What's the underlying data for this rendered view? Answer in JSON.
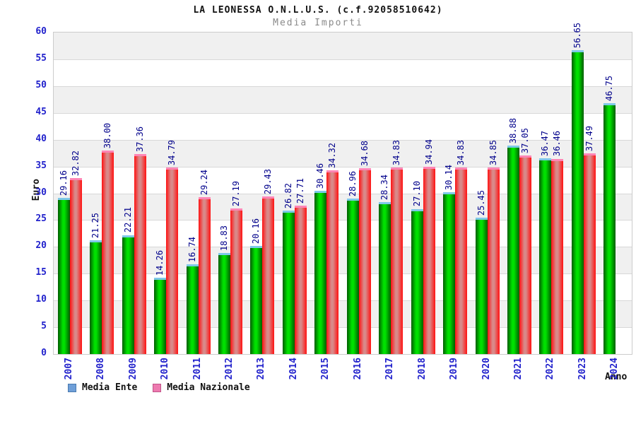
{
  "header": {
    "title": "LA LEONESSA O.N.L.U.S. (c.f.92058510642)",
    "subtitle": "Media Importi"
  },
  "chart_data": {
    "type": "bar",
    "title": "LA LEONESSA O.N.L.U.S. (c.f.92058510642)",
    "subtitle": "Media Importi",
    "xlabel": "Anno",
    "ylabel": "Euro",
    "ylim": [
      0,
      60
    ],
    "yticks": [
      0,
      5,
      10,
      15,
      20,
      25,
      30,
      35,
      40,
      45,
      50,
      55,
      60
    ],
    "grid": true,
    "legend_position": "bottom-left",
    "value_label_decimals": 2,
    "categories": [
      "2007",
      "2008",
      "2009",
      "2010",
      "2011",
      "2012",
      "2013",
      "2014",
      "2015",
      "2016",
      "2017",
      "2018",
      "2019",
      "2020",
      "2021",
      "2022",
      "2023",
      "2024"
    ],
    "series": [
      {
        "name": "Media Ente",
        "values": [
          29.16,
          21.25,
          22.21,
          14.26,
          16.74,
          18.83,
          20.16,
          26.82,
          30.46,
          28.96,
          28.34,
          27.1,
          30.14,
          25.45,
          38.88,
          36.47,
          56.65,
          46.75
        ],
        "bar_edge_color": "#005c00",
        "bar_mid_color": "#00e000",
        "bar_cap_color": "#7ec8e8",
        "legend_swatch_color": "#6f9fd8",
        "legend_swatch_border": "#4a7ab0"
      },
      {
        "name": "Media Nazionale",
        "values": [
          32.82,
          38.0,
          37.36,
          34.79,
          29.24,
          27.19,
          29.43,
          27.71,
          34.32,
          34.68,
          34.83,
          34.94,
          34.83,
          34.85,
          37.05,
          36.46,
          37.49,
          null
        ],
        "bar_edge_color": "#ff1212",
        "bar_mid_color": "#d98989",
        "bar_cap_color": "#ff85b5",
        "legend_swatch_color": "#ee7ab0",
        "legend_swatch_border": "#c05488"
      }
    ]
  },
  "colors": {
    "tick_label": "#2222cc",
    "value_label": "#00008b",
    "band": "#f0f0f0",
    "gridline": "#d8d8d8",
    "plot_border": "#cccccc",
    "subtitle_text": "#8a8a8a"
  }
}
